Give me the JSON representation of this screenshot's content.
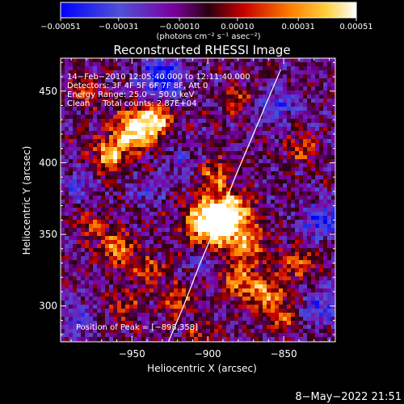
{
  "chart_data": {
    "type": "heatmap",
    "title": "Reconstructed RHESSI Image",
    "xlabel": "Heliocentric X (arcsec)",
    "ylabel": "Heliocentric Y (arcsec)",
    "xlim": [
      -997,
      -816
    ],
    "ylim": [
      275,
      473
    ],
    "xticks": [
      -950,
      -900,
      -850
    ],
    "xtick_labels": [
      "−950",
      "−900",
      "−850"
    ],
    "yticks": [
      300,
      350,
      400,
      450
    ],
    "ytick_labels": [
      "300",
      "350",
      "400",
      "450"
    ],
    "colorbar": {
      "min": -0.00051,
      "max": 0.00051,
      "ticks": [
        -0.00051,
        -0.00031,
        -0.0001,
        0.0001,
        0.00031,
        0.00051
      ],
      "tick_labels": [
        "−0.00051",
        "−0.00031",
        "−0.00010",
        "0.00010",
        "0.00031",
        "0.00051"
      ],
      "unit_label": "(photons cm⁻² s⁻¹ asec⁻²)"
    },
    "annotations": [
      "14−Feb−2010 12:05:40.000 to 12:11:40.000",
      "Detectors: 3F 4F 5F 6F 7F 8F, Att 0",
      "Energy Range: 25.0 − 50.0 keV",
      "Clean     Total counts: 2.87E+04"
    ],
    "peak_label": "Position of Peak = [−898,358]",
    "peak": {
      "x": -898,
      "y": 358
    },
    "limb_curve": [
      [
        -926,
        275
      ],
      [
        -916,
        300
      ],
      [
        -905,
        330
      ],
      [
        -893,
        360
      ],
      [
        -882,
        390
      ],
      [
        -870,
        420
      ],
      [
        -860,
        445
      ],
      [
        -852,
        465
      ]
    ],
    "hotspots": [
      {
        "x": -950,
        "y": 422,
        "amp": 1.0,
        "r": 9
      },
      {
        "x": -935,
        "y": 430,
        "amp": 0.95,
        "r": 8
      },
      {
        "x": -965,
        "y": 405,
        "amp": 0.8,
        "r": 8
      },
      {
        "x": -898,
        "y": 358,
        "amp": 1.2,
        "r": 11
      },
      {
        "x": -885,
        "y": 365,
        "amp": 0.9,
        "r": 9
      },
      {
        "x": -875,
        "y": 343,
        "amp": 0.7,
        "r": 9
      },
      {
        "x": -895,
        "y": 392,
        "amp": 0.6,
        "r": 8
      },
      {
        "x": -862,
        "y": 308,
        "amp": 0.7,
        "r": 9
      },
      {
        "x": -880,
        "y": 318,
        "amp": 0.55,
        "r": 8
      },
      {
        "x": -840,
        "y": 330,
        "amp": 0.5,
        "r": 8
      },
      {
        "x": -960,
        "y": 340,
        "amp": 0.65,
        "r": 8
      },
      {
        "x": -940,
        "y": 325,
        "amp": 0.5,
        "r": 7
      },
      {
        "x": -975,
        "y": 355,
        "amp": 0.45,
        "r": 7
      },
      {
        "x": -955,
        "y": 300,
        "amp": 0.4,
        "r": 8
      },
      {
        "x": -920,
        "y": 305,
        "amp": 0.45,
        "r": 8
      },
      {
        "x": -838,
        "y": 410,
        "amp": 0.45,
        "r": 7
      },
      {
        "x": -880,
        "y": 445,
        "amp": 0.4,
        "r": 7
      },
      {
        "x": -980,
        "y": 450,
        "amp": 0.35,
        "r": 7
      },
      {
        "x": -850,
        "y": 290,
        "amp": 0.5,
        "r": 6
      },
      {
        "x": -905,
        "y": 282,
        "amp": 0.4,
        "r": 6
      }
    ],
    "coldspots": [
      {
        "x": -930,
        "y": 460,
        "amp": 0.9,
        "r": 10
      },
      {
        "x": -855,
        "y": 440,
        "amp": 0.6,
        "r": 9
      },
      {
        "x": -825,
        "y": 360,
        "amp": 0.7,
        "r": 10
      },
      {
        "x": -825,
        "y": 300,
        "amp": 0.55,
        "r": 9
      },
      {
        "x": -985,
        "y": 385,
        "amp": 0.5,
        "r": 8
      },
      {
        "x": -985,
        "y": 290,
        "amp": 0.5,
        "r": 8
      },
      {
        "x": -915,
        "y": 400,
        "amp": 0.4,
        "r": 8
      },
      {
        "x": -940,
        "y": 380,
        "amp": 0.35,
        "r": 7
      },
      {
        "x": -905,
        "y": 330,
        "amp": 0.35,
        "r": 7
      }
    ]
  },
  "footer": {
    "timestamp": "8−May−2022 21:51"
  }
}
